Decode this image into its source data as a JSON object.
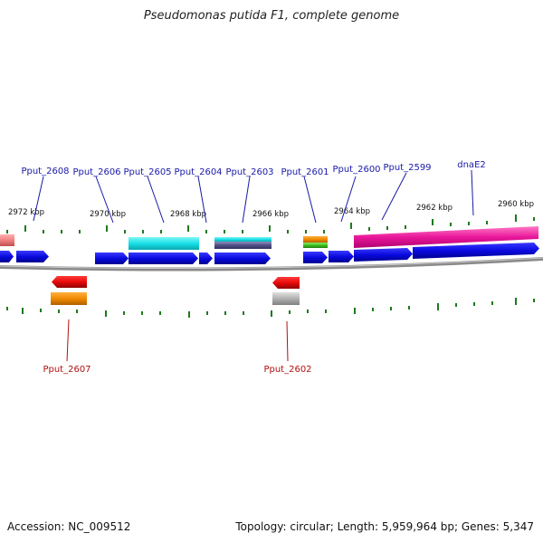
{
  "header": {
    "title": "Pseudomonas putida F1, complete genome"
  },
  "footer": {
    "accession": "Accession: NC_009512",
    "summary": "Topology: circular; Length: 5,959,964 bp; Genes: 5,347"
  },
  "colors": {
    "forward_gene": "#1010e8",
    "reverse_gene": "#e81010",
    "label_forward": "#1a1aa8",
    "label_reverse": "#b01010",
    "tick": "#1f7a1f",
    "backbone": "#8a8a8a"
  },
  "ruler": [
    {
      "label": "2972 kbp"
    },
    {
      "label": "2970 kbp"
    },
    {
      "label": "2968 kbp"
    },
    {
      "label": "2966 kbp"
    },
    {
      "label": "2964 kbp"
    },
    {
      "label": "2962 kbp"
    },
    {
      "label": "2960 kbp"
    }
  ],
  "genes_forward": [
    {
      "label": "Pput_2608"
    },
    {
      "label": "Pput_2606"
    },
    {
      "label": "Pput_2605"
    },
    {
      "label": "Pput_2604"
    },
    {
      "label": "Pput_2603"
    },
    {
      "label": "Pput_2601"
    },
    {
      "label": "Pput_2600"
    },
    {
      "label": "Pput_2599"
    },
    {
      "label": "dnaE2"
    }
  ],
  "genes_reverse": [
    {
      "label": "Pput_2607"
    },
    {
      "label": "Pput_2602"
    }
  ]
}
